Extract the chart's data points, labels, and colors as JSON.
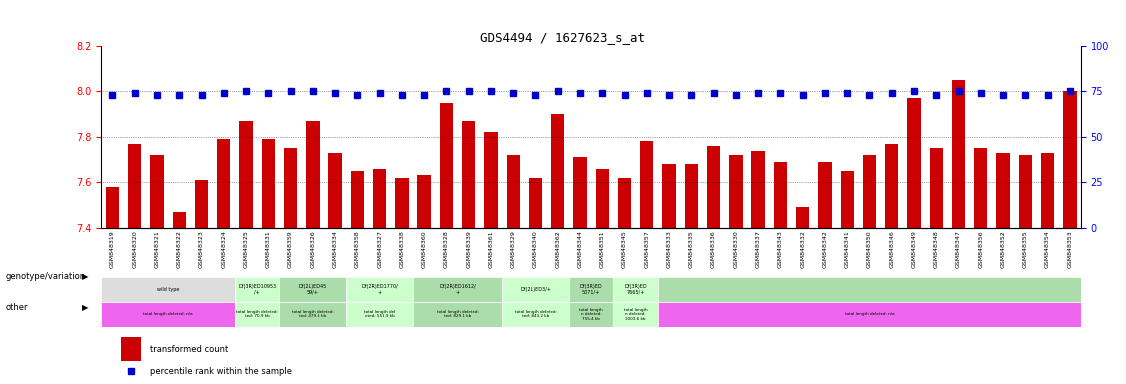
{
  "title": "GDS4494 / 1627623_s_at",
  "samples": [
    "GSM848319",
    "GSM848320",
    "GSM848321",
    "GSM848322",
    "GSM848323",
    "GSM848324",
    "GSM848325",
    "GSM848331",
    "GSM848359",
    "GSM848326",
    "GSM848334",
    "GSM848358",
    "GSM848327",
    "GSM848338",
    "GSM848360",
    "GSM848328",
    "GSM848339",
    "GSM848361",
    "GSM848329",
    "GSM848340",
    "GSM848362",
    "GSM848344",
    "GSM848351",
    "GSM848345",
    "GSM848357",
    "GSM848333",
    "GSM848335",
    "GSM848336",
    "GSM848330",
    "GSM848337",
    "GSM848343",
    "GSM848332",
    "GSM848342",
    "GSM848341",
    "GSM848350",
    "GSM848346",
    "GSM848349",
    "GSM848348",
    "GSM848347",
    "GSM848356",
    "GSM848352",
    "GSM848355",
    "GSM848354",
    "GSM848353"
  ],
  "bar_values": [
    7.58,
    7.77,
    7.72,
    7.47,
    7.61,
    7.79,
    7.87,
    7.79,
    7.75,
    7.87,
    7.73,
    7.65,
    7.66,
    7.62,
    7.63,
    7.95,
    7.87,
    7.82,
    7.72,
    7.62,
    7.9,
    7.71,
    7.66,
    7.62,
    7.78,
    7.68,
    7.68,
    7.76,
    7.72,
    7.74,
    7.69,
    7.49,
    7.69,
    7.65,
    7.72,
    7.77,
    7.97,
    7.75,
    8.05,
    7.75,
    7.73,
    7.72,
    7.73,
    8.0
  ],
  "percentile_values": [
    73,
    74,
    73,
    73,
    73,
    74,
    75,
    74,
    75,
    75,
    74,
    73,
    74,
    73,
    73,
    75,
    75,
    75,
    74,
    73,
    75,
    74,
    74,
    73,
    74,
    73,
    73,
    74,
    73,
    74,
    74,
    73,
    74,
    74,
    73,
    74,
    75,
    73,
    75,
    74,
    73,
    73,
    73,
    75
  ],
  "ylim_left": [
    7.4,
    8.2
  ],
  "ylim_right": [
    0,
    100
  ],
  "yticks_left": [
    7.4,
    7.6,
    7.8,
    8.0,
    8.2
  ],
  "yticks_right": [
    0,
    25,
    50,
    75,
    100
  ],
  "bar_color": "#cc0000",
  "dot_color": "#0000cc",
  "bar_baseline": 7.4,
  "genotype_groups": [
    {
      "label": "wild type",
      "start": 0,
      "end": 6,
      "bg": "#dddddd"
    },
    {
      "label": "Df(3R)ED10953\n/+",
      "start": 6,
      "end": 8,
      "bg": "#ccffcc"
    },
    {
      "label": "Df(2L)ED45\n59/+",
      "start": 8,
      "end": 11,
      "bg": "#aaddaa"
    },
    {
      "label": "Df(2R)ED1770/\n+",
      "start": 11,
      "end": 14,
      "bg": "#ccffcc"
    },
    {
      "label": "Df(2R)ED1612/\n+",
      "start": 14,
      "end": 18,
      "bg": "#aaddaa"
    },
    {
      "label": "Df(2L)ED3/+",
      "start": 18,
      "end": 21,
      "bg": "#ccffcc"
    },
    {
      "label": "Df(3R)ED\n5071/+",
      "start": 21,
      "end": 23,
      "bg": "#aaddaa"
    },
    {
      "label": "Df(3R)ED\n7665/+",
      "start": 23,
      "end": 25,
      "bg": "#ccffcc"
    },
    {
      "label": "",
      "start": 25,
      "end": 44,
      "bg": "#aaddaa"
    }
  ],
  "other_groups": [
    {
      "label": "total length deleted: n/a",
      "start": 0,
      "end": 6,
      "bg": "#ee66ee"
    },
    {
      "label": "total length deleted:\nted: 70.9 kb",
      "start": 6,
      "end": 8,
      "bg": "#ccffcc"
    },
    {
      "label": "total length deleted:\nted: 479.1 kb",
      "start": 8,
      "end": 11,
      "bg": "#aaddaa"
    },
    {
      "label": "total length del\neted: 551.9 kb",
      "start": 11,
      "end": 14,
      "bg": "#ccffcc"
    },
    {
      "label": "total length deleted:\nted: 829.1 kb",
      "start": 14,
      "end": 18,
      "bg": "#aaddaa"
    },
    {
      "label": "total length deleted:\nted: 843.2 kb",
      "start": 18,
      "end": 21,
      "bg": "#ccffcc"
    },
    {
      "label": "total length\nn deleted:\n755.4 kb",
      "start": 21,
      "end": 23,
      "bg": "#aaddaa"
    },
    {
      "label": "total length\nn deleted:\n1003.6 kb",
      "start": 23,
      "end": 25,
      "bg": "#ccffcc"
    },
    {
      "label": "total length deleted: n/a",
      "start": 25,
      "end": 44,
      "bg": "#ee66ee"
    }
  ],
  "background_color": "#ffffff",
  "left_label_genotype": "genotype/variation",
  "left_label_other": "other",
  "legend_items": [
    "transformed count",
    "percentile rank within the sample"
  ]
}
